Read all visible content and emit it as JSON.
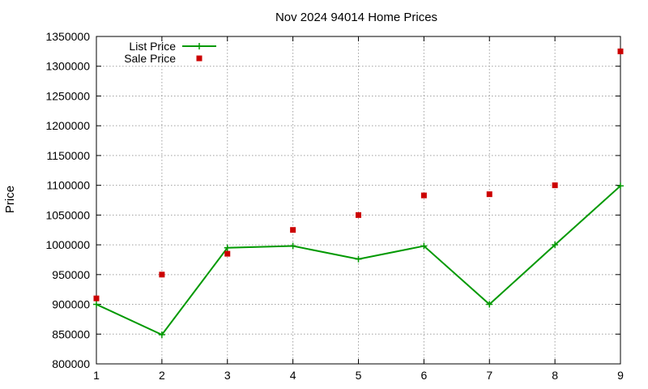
{
  "chart_data": {
    "type": "line",
    "title": "Nov 2024 94014 Home Prices",
    "xlabel": "",
    "ylabel": "Price",
    "x": [
      1,
      2,
      3,
      4,
      5,
      6,
      7,
      8,
      9
    ],
    "xlim": [
      1,
      9
    ],
    "ylim": [
      800000,
      1350000
    ],
    "yticks": [
      800000,
      850000,
      900000,
      950000,
      1000000,
      1050000,
      1100000,
      1150000,
      1200000,
      1250000,
      1300000,
      1350000
    ],
    "xticks": [
      1,
      2,
      3,
      4,
      5,
      6,
      7,
      8,
      9
    ],
    "grid": true,
    "legend_position": "top-left",
    "series": [
      {
        "name": "List Price",
        "style": "line-points",
        "marker": "plus",
        "color": "#009900",
        "values": [
          900000,
          849000,
          995000,
          998000,
          976000,
          998000,
          900000,
          1000000,
          1099000
        ]
      },
      {
        "name": "Sale Price",
        "style": "points",
        "marker": "square",
        "color": "#cc0000",
        "values": [
          910000,
          950000,
          985000,
          1025000,
          1050000,
          1083000,
          1085000,
          1100000,
          1325000
        ]
      }
    ]
  }
}
